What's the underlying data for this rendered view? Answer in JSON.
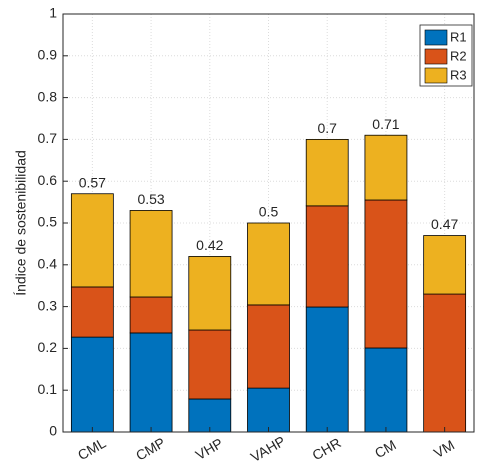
{
  "chart_data": {
    "type": "stacked-bar",
    "y_label": "Índice de sostenibilidad",
    "categories": [
      "CML",
      "CMP",
      "VHP",
      "VAHP",
      "CHR",
      "CM",
      "VM"
    ],
    "series": [
      {
        "name": "R1",
        "color": "#0072bd",
        "values": [
          0.227,
          0.237,
          0.079,
          0.105,
          0.299,
          0.201,
          0
        ]
      },
      {
        "name": "R2",
        "color": "#d95319",
        "values": [
          0.12,
          0.086,
          0.165,
          0.199,
          0.242,
          0.354,
          0.33
        ]
      },
      {
        "name": "R3",
        "color": "#edb120",
        "values": [
          0.223,
          0.207,
          0.176,
          0.196,
          0.159,
          0.155,
          0.14
        ]
      }
    ],
    "totals": [
      0.57,
      0.53,
      0.42,
      0.5,
      0.7,
      0.71,
      0.47
    ],
    "ylim": [
      0,
      1
    ],
    "yticks": [
      0,
      0.1,
      0.2,
      0.3,
      0.4,
      0.5,
      0.6,
      0.7,
      0.8,
      0.9,
      1
    ],
    "grid": true,
    "legend": "top-right"
  }
}
